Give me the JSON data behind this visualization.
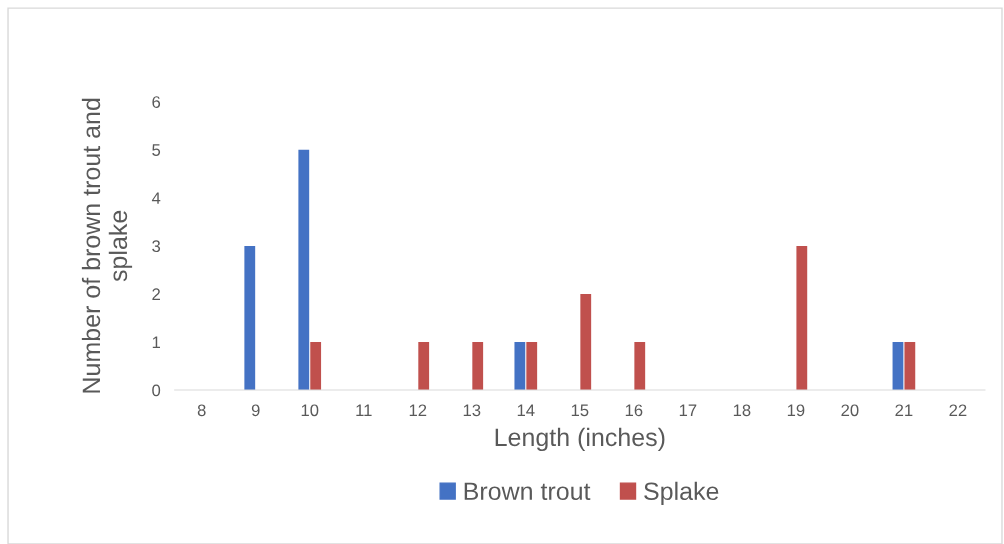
{
  "chart_data": {
    "type": "bar",
    "xlabel": "Length (inches)",
    "ylabel": "Number of brown trout and\nsplake",
    "categories": [
      "8",
      "9",
      "10",
      "11",
      "12",
      "13",
      "14",
      "15",
      "16",
      "17",
      "18",
      "19",
      "20",
      "21",
      "22"
    ],
    "series": [
      {
        "name": "Brown trout",
        "color": "#4472c4",
        "values": [
          0,
          3,
          5,
          0,
          0,
          0,
          1,
          0,
          0,
          0,
          0,
          0,
          0,
          1,
          0
        ]
      },
      {
        "name": "Splake",
        "color": "#c0504d",
        "values": [
          0,
          0,
          1,
          0,
          1,
          1,
          1,
          2,
          1,
          0,
          0,
          3,
          0,
          1,
          0
        ]
      }
    ],
    "ylim": [
      0,
      6
    ],
    "yticks": [
      0,
      1,
      2,
      3,
      4,
      5,
      6
    ],
    "grid": false,
    "legend": "bottom"
  }
}
